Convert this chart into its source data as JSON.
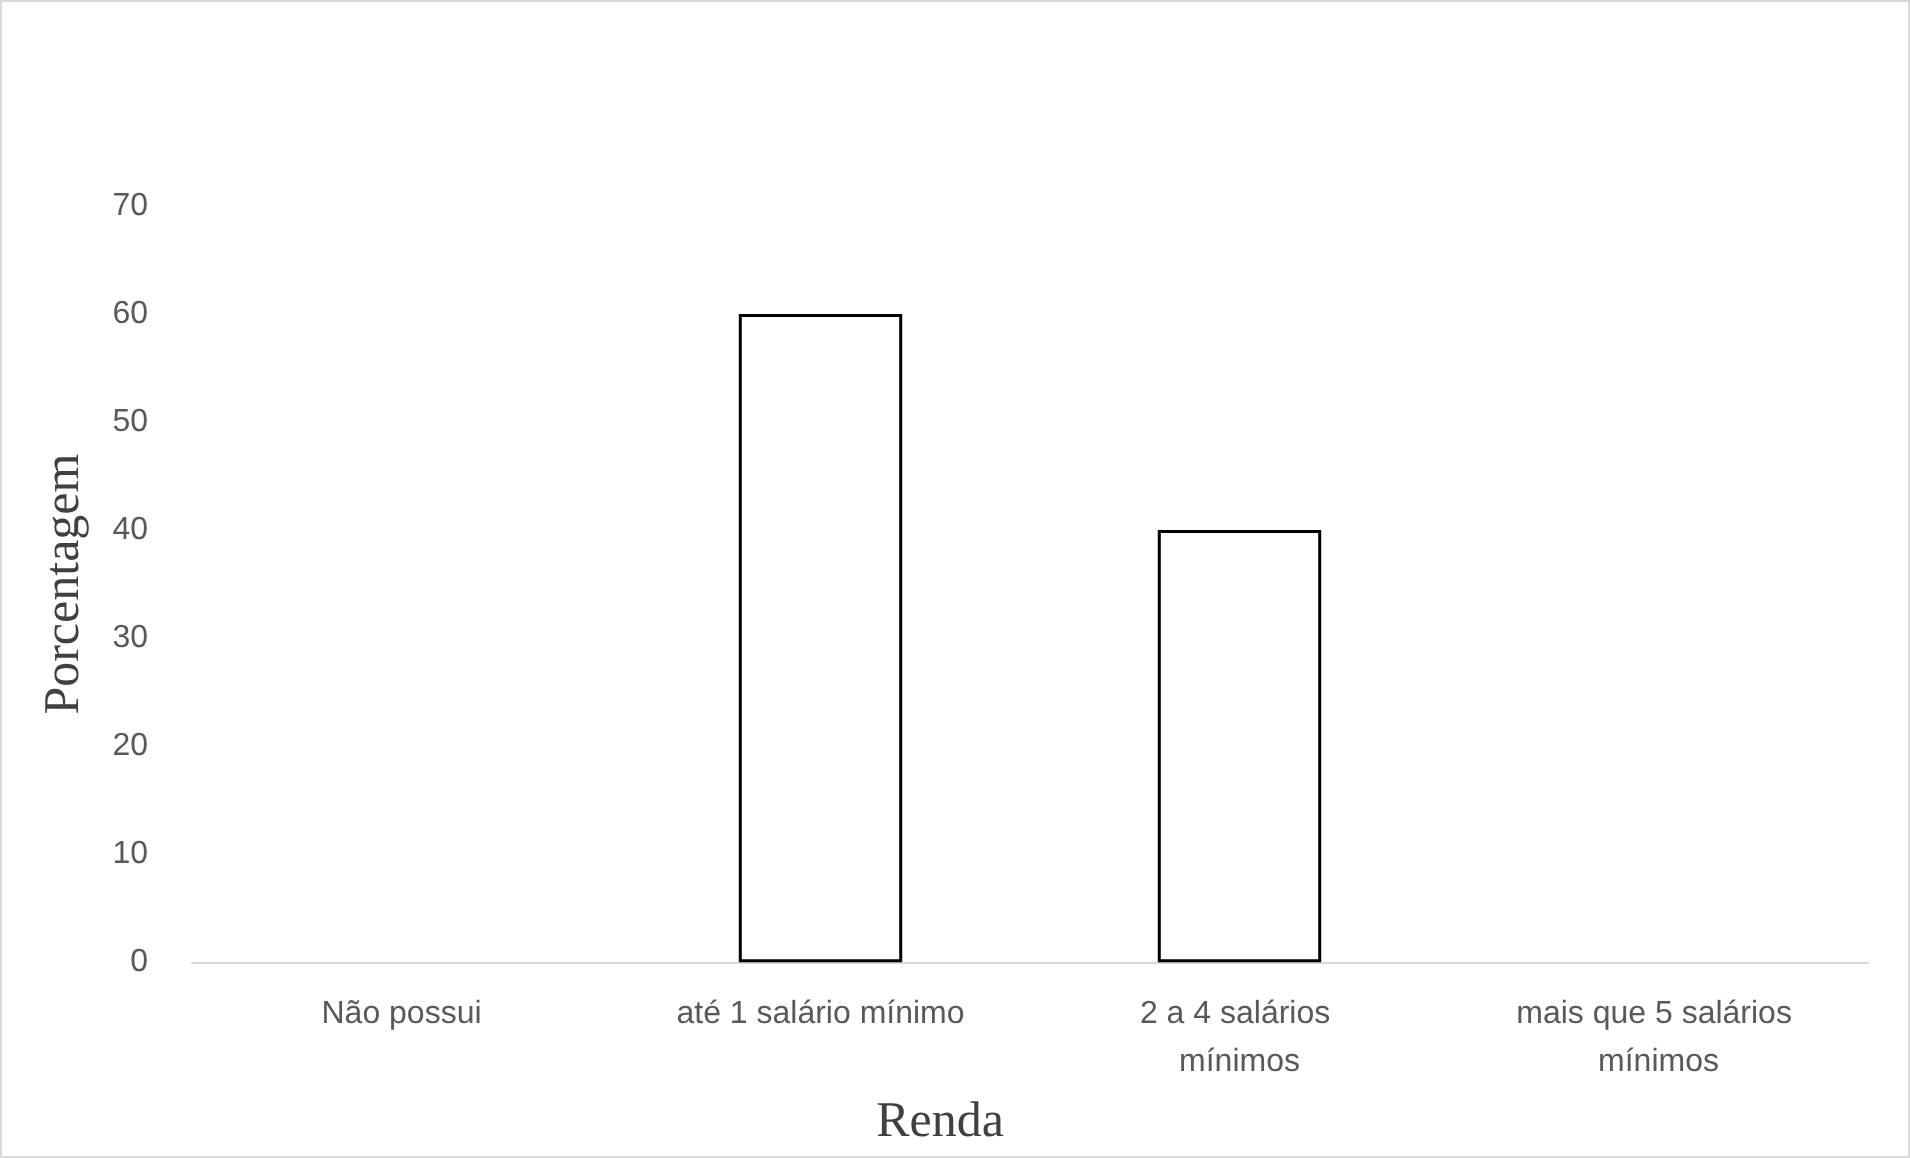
{
  "chart_data": {
    "type": "bar",
    "categories": [
      "Não possui",
      "até 1 salário mínimo",
      "2 a 4 salários mínimos",
      "mais que 5 salários mínimos"
    ],
    "values": [
      0,
      60,
      40,
      0
    ],
    "color": "#ffffff",
    "xlabel": "Renda",
    "ylabel": "Porcentagem",
    "ylim": [
      0,
      70
    ],
    "yticks": [
      0,
      10,
      20,
      30,
      40,
      50,
      60,
      70
    ],
    "grid": false
  }
}
